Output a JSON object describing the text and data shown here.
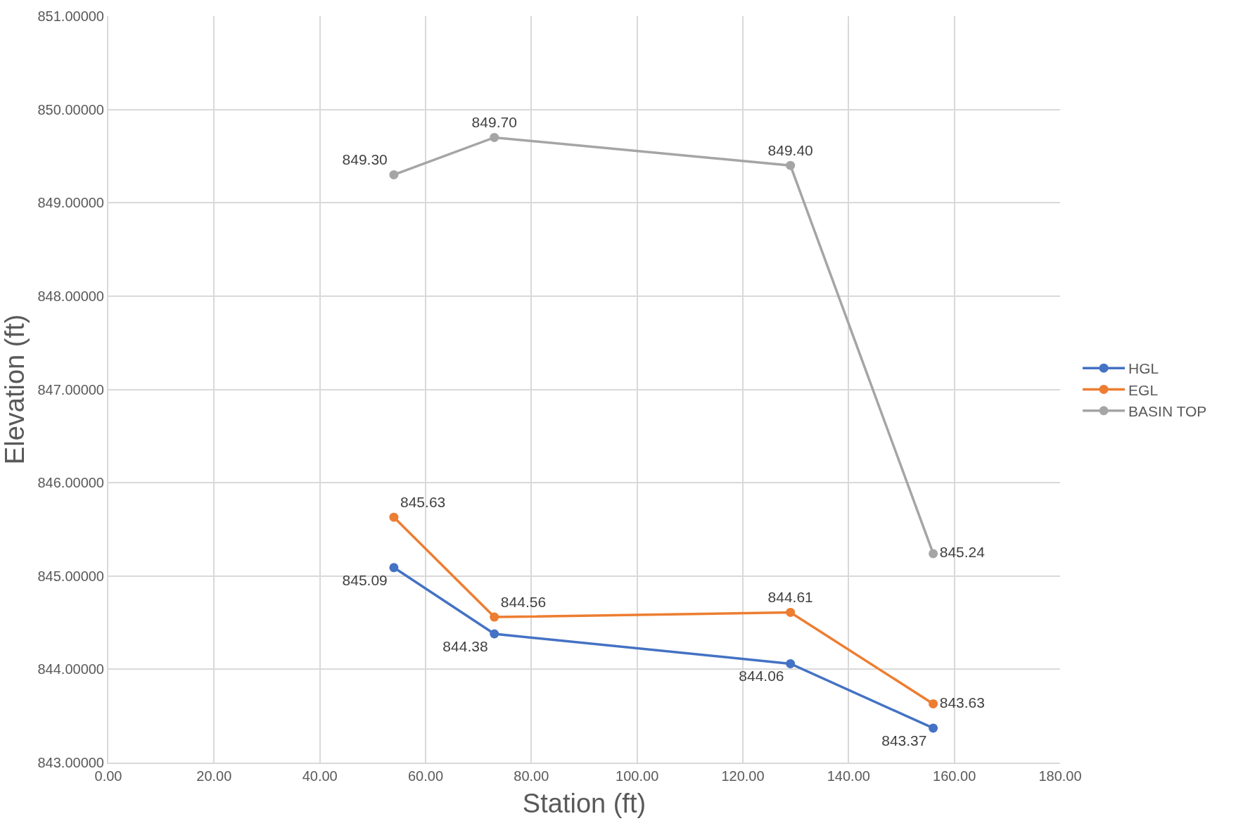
{
  "chart_data": {
    "type": "line",
    "xlabel": "Station (ft)",
    "ylabel": "Elevation (ft)",
    "xlim": [
      0,
      180
    ],
    "xticks": [
      {
        "value": 0,
        "label": "0.00"
      },
      {
        "value": 20,
        "label": "20.00"
      },
      {
        "value": 40,
        "label": "40.00"
      },
      {
        "value": 60,
        "label": "60.00"
      },
      {
        "value": 80,
        "label": "80.00"
      },
      {
        "value": 100,
        "label": "100.00"
      },
      {
        "value": 120,
        "label": "120.00"
      },
      {
        "value": 140,
        "label": "140.00"
      },
      {
        "value": 160,
        "label": "160.00"
      },
      {
        "value": 180,
        "label": "180.00"
      }
    ],
    "ylim": [
      843,
      851
    ],
    "yticks": [
      {
        "value": 843,
        "label": "843.00000"
      },
      {
        "value": 844,
        "label": "844.00000"
      },
      {
        "value": 845,
        "label": "845.00000"
      },
      {
        "value": 846,
        "label": "846.00000"
      },
      {
        "value": 847,
        "label": "847.00000"
      },
      {
        "value": 848,
        "label": "848.00000"
      },
      {
        "value": 849,
        "label": "849.00000"
      },
      {
        "value": 850,
        "label": "850.00000"
      },
      {
        "value": 851,
        "label": "851.00000"
      }
    ],
    "x": [
      54,
      73,
      129,
      156
    ],
    "series": [
      {
        "name": "HGL",
        "color": "#4472c4",
        "values": [
          845.09,
          844.38,
          844.06,
          843.37
        ],
        "value_labels": [
          "845.09",
          "844.38",
          "844.06",
          "843.37"
        ]
      },
      {
        "name": "EGL",
        "color": "#ed7d31",
        "values": [
          845.63,
          844.56,
          844.61,
          843.63
        ],
        "value_labels": [
          "845.63",
          "844.56",
          "844.61",
          "843.63"
        ]
      },
      {
        "name": "BASIN TOP",
        "color": "#a5a5a5",
        "values": [
          849.3,
          849.7,
          849.4,
          845.24
        ],
        "value_labels": [
          "849.30",
          "849.70",
          "849.40",
          "845.24"
        ]
      }
    ],
    "grid": true,
    "legend": "right",
    "marker": "circle",
    "line_style": "solid"
  }
}
